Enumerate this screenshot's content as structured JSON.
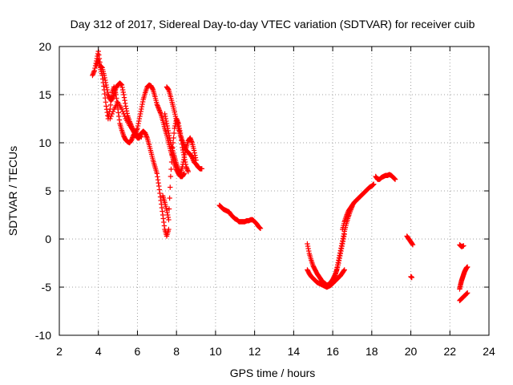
{
  "chart_data": {
    "type": "scatter",
    "title": "Day 312 of 2017, Sidereal Day-to-day VTEC variation (SDTVAR) for receiver cuib",
    "xlabel": "GPS time / hours",
    "ylabel": "SDTVAR / TECUs",
    "xlim": [
      2,
      24
    ],
    "ylim": [
      -10,
      20
    ],
    "xticks": [
      "2",
      "4",
      "6",
      "8",
      "10",
      "12",
      "14",
      "16",
      "18",
      "20",
      "22",
      "24"
    ],
    "yticks": [
      "-10",
      "-5",
      "0",
      "5",
      "10",
      "15",
      "20"
    ],
    "grid": true,
    "marker": "+",
    "series": [
      {
        "name": "SDTVAR",
        "color": "#ff0000",
        "tracks": [
          {
            "x": [
              3.7,
              3.8,
              3.9,
              4.0,
              4.1,
              4.2,
              4.3,
              4.4,
              4.5,
              4.6,
              4.7,
              4.8,
              4.9,
              5.0,
              5.1,
              5.2,
              5.3,
              5.4,
              5.5,
              5.6,
              5.7,
              5.8,
              5.9,
              6.0,
              6.1,
              6.2,
              6.3,
              6.4,
              6.5,
              6.6,
              6.7,
              6.8,
              6.9,
              7.0,
              7.1,
              7.2,
              7.3,
              7.4,
              7.5,
              7.6
            ],
            "y": [
              17.0,
              17.5,
              18.5,
              19.5,
              18.0,
              17.8,
              17.0,
              16.0,
              15.0,
              14.5,
              14.5,
              15.0,
              15.7,
              16.0,
              16.2,
              16.0,
              15.0,
              13.8,
              12.8,
              12.2,
              11.7,
              11.2,
              10.8,
              10.5,
              10.5,
              11.0,
              11.2,
              11.0,
              10.5,
              9.8,
              9.0,
              8.2,
              7.5,
              6.8,
              5.5,
              4.0,
              2.5,
              1.0,
              0.3,
              1.0
            ]
          },
          {
            "x": [
              3.9,
              4.0,
              4.1,
              4.2,
              4.3,
              4.4,
              4.5,
              4.6,
              4.7,
              4.8,
              4.9,
              5.0,
              5.1,
              5.2,
              5.3,
              5.4,
              5.5,
              5.6,
              5.7,
              5.8,
              5.9,
              6.0,
              6.1,
              6.2,
              6.3,
              6.4,
              6.5,
              6.6,
              6.7,
              6.8,
              6.9,
              7.0,
              7.1,
              7.2,
              7.3,
              7.4,
              7.5,
              7.6,
              7.7,
              7.8,
              7.9,
              8.0,
              8.1,
              8.2,
              8.3,
              8.4
            ],
            "y": [
              18.0,
              18.6,
              17.8,
              17.0,
              15.5,
              13.8,
              12.5,
              13.5,
              15.2,
              15.8,
              15.0,
              13.5,
              12.0,
              11.3,
              10.7,
              10.3,
              10.1,
              10.0,
              10.3,
              10.8,
              11.0,
              11.5,
              12.5,
              13.5,
              14.5,
              15.2,
              15.8,
              16.0,
              15.9,
              15.5,
              14.8,
              14.0,
              13.5,
              13.0,
              12.3,
              11.5,
              10.8,
              10.0,
              9.2,
              8.5,
              7.8,
              7.2,
              6.8,
              6.5,
              6.5,
              6.8
            ]
          },
          {
            "x": [
              4.6,
              4.8,
              5.0,
              5.2,
              5.4,
              5.6,
              5.8,
              6.0,
              6.2
            ],
            "y": [
              12.5,
              13.5,
              14.2,
              13.5,
              12.5,
              11.8,
              11.2,
              10.8,
              10.6
            ]
          },
          {
            "x": [
              7.5,
              7.6,
              7.7,
              7.8,
              7.9,
              8.0,
              8.1,
              8.2,
              8.3,
              8.4,
              8.5,
              8.6,
              8.7,
              8.8,
              8.9,
              9.0,
              9.1,
              9.2,
              9.3
            ],
            "y": [
              15.8,
              15.5,
              14.8,
              14.0,
              13.2,
              12.3,
              11.5,
              10.8,
              10.2,
              9.6,
              9.2,
              9.0,
              8.8,
              8.5,
              8.0,
              7.8,
              7.5,
              7.3,
              7.3
            ]
          },
          {
            "x": [
              7.4,
              7.5,
              7.6,
              7.7,
              7.8,
              7.9,
              8.0,
              8.1,
              8.2,
              8.3,
              8.4,
              8.5,
              8.6,
              8.7,
              8.8,
              8.9,
              9.0
            ],
            "y": [
              13.0,
              12.0,
              11.0,
              10.0,
              9.2,
              8.5,
              7.8,
              7.2,
              6.8,
              7.5,
              8.5,
              9.5,
              10.2,
              10.5,
              10.0,
              9.2,
              8.2
            ]
          },
          {
            "x": [
              7.3,
              7.4,
              7.5,
              7.6,
              7.7,
              7.8,
              7.9,
              8.0,
              8.1,
              8.2,
              8.3,
              8.4,
              8.5,
              8.6
            ],
            "y": [
              4.5,
              3.8,
              3.0,
              2.0,
              6.5,
              9.5,
              11.5,
              12.5,
              12.0,
              11.0,
              9.5,
              8.5,
              7.5,
              7.0
            ]
          },
          {
            "x": [
              10.2,
              10.3,
              10.4,
              10.5,
              10.6,
              10.7,
              10.8,
              10.9,
              11.0,
              11.1,
              11.2,
              11.3,
              11.4,
              11.5,
              11.6,
              11.7,
              11.8,
              11.9,
              12.0,
              12.1,
              12.2,
              12.3
            ],
            "y": [
              3.5,
              3.3,
              3.1,
              3.0,
              2.9,
              2.8,
              2.5,
              2.3,
              2.1,
              2.0,
              1.8,
              1.8,
              1.8,
              1.8,
              1.9,
              1.9,
              2.0,
              2.0,
              1.8,
              1.6,
              1.3,
              1.1
            ]
          },
          {
            "x": [
              14.7,
              14.8,
              14.9,
              15.0,
              15.1,
              15.2,
              15.3,
              15.4,
              15.5,
              15.6,
              15.7,
              15.8,
              15.9,
              16.0,
              16.1,
              16.2,
              16.3,
              16.4,
              16.5,
              16.6
            ],
            "y": [
              -0.5,
              -1.5,
              -2.2,
              -2.8,
              -3.2,
              -3.6,
              -3.9,
              -4.2,
              -4.5,
              -4.6,
              -4.8,
              -4.7,
              -4.5,
              -4.2,
              -3.8,
              -3.3,
              -2.5,
              -1.5,
              -0.5,
              0.5
            ]
          },
          {
            "x": [
              14.7,
              14.8,
              14.9,
              15.0,
              15.1,
              15.2,
              15.3,
              15.4,
              15.5,
              15.6,
              15.7,
              15.8,
              15.9,
              16.0,
              16.1,
              16.2,
              16.3,
              16.4,
              16.5,
              16.6
            ],
            "y": [
              -3.2,
              -3.6,
              -3.9,
              -4.1,
              -4.3,
              -4.5,
              -4.6,
              -4.7,
              -4.8,
              -4.9,
              -5.0,
              -4.9,
              -4.8,
              -4.6,
              -4.4,
              -4.2,
              -4.0,
              -3.8,
              -3.5,
              -3.2
            ]
          },
          {
            "x": [
              16.0,
              16.1,
              16.2,
              16.3,
              16.4,
              16.5,
              16.6,
              16.7,
              16.8,
              16.9,
              17.0
            ],
            "y": [
              -4.6,
              -4.0,
              -3.2,
              -2.2,
              -1.2,
              -0.2,
              0.8,
              1.6,
              2.3,
              2.9,
              3.4
            ]
          },
          {
            "x": [
              16.5,
              16.6,
              16.7,
              16.8,
              16.9,
              17.0,
              17.1,
              17.2,
              17.3,
              17.4,
              17.5,
              17.6,
              17.7,
              17.8,
              17.9,
              18.0,
              18.1
            ],
            "y": [
              1.0,
              1.8,
              2.4,
              2.9,
              3.2,
              3.5,
              3.8,
              4.0,
              4.2,
              4.4,
              4.6,
              4.8,
              5.0,
              5.2,
              5.4,
              5.5,
              5.7
            ]
          },
          {
            "x": [
              18.2,
              18.3,
              18.4,
              18.5,
              18.6,
              18.7,
              18.8,
              18.9,
              19.0,
              19.1,
              19.2
            ],
            "y": [
              6.5,
              6.2,
              6.2,
              6.4,
              6.5,
              6.6,
              6.6,
              6.7,
              6.6,
              6.4,
              6.2
            ]
          },
          {
            "x": [
              19.8,
              19.9,
              20.0,
              20.1
            ],
            "y": [
              0.3,
              0.0,
              -0.3,
              -0.6
            ]
          },
          {
            "x": [
              20.0,
              20.05
            ],
            "y": [
              -3.9,
              -4.0
            ]
          },
          {
            "x": [
              22.5,
              22.6,
              22.7
            ],
            "y": [
              -0.6,
              -0.8,
              -0.7
            ]
          },
          {
            "x": [
              22.5,
              22.55,
              22.6,
              22.65,
              22.7,
              22.75,
              22.8,
              22.85,
              22.9
            ],
            "y": [
              -5.2,
              -4.7,
              -4.3,
              -4.0,
              -3.7,
              -3.4,
              -3.2,
              -3.0,
              -2.9
            ]
          },
          {
            "x": [
              22.5,
              22.6,
              22.7,
              22.8,
              22.9
            ],
            "y": [
              -6.4,
              -6.2,
              -6.0,
              -5.8,
              -5.6
            ]
          }
        ]
      }
    ]
  }
}
